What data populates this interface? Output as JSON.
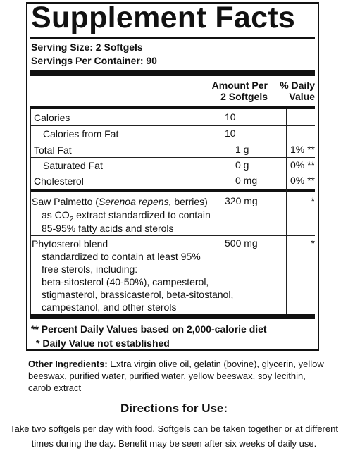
{
  "panel": {
    "title": "Supplement Facts",
    "serving_size": "Serving Size: 2 Softgels",
    "servings_per_container": "Servings Per Container: 90",
    "col_amount_l1": "Amount Per",
    "col_amount_l2": "2 Softgels",
    "col_dv_l1": "% Daily",
    "col_dv_l2": "Value",
    "rows": [
      {
        "name": "Calories",
        "amount": "10",
        "dv": ""
      },
      {
        "name": "Calories from Fat",
        "amount": "10",
        "dv": ""
      },
      {
        "name": "Total Fat",
        "amount": "1 g",
        "dv": "1% **"
      },
      {
        "name": "Saturated Fat",
        "amount": "0 g",
        "dv": "0% **"
      },
      {
        "name": "Cholesterol",
        "amount": "0 mg",
        "dv": "0% **"
      }
    ],
    "saw": {
      "name_start": "Saw Palmetto (",
      "name_italic": "Serenoa repens,",
      "name_end": " berries)",
      "line2_pre": "as CO",
      "line2_sub": "2",
      "line2_post": " extract standardized to contain",
      "line3": "85-95% fatty acids and sterols",
      "amount": "320 mg",
      "dv": "*"
    },
    "phyto": {
      "name": "Phytosterol blend",
      "lines": [
        "standardized to contain at least 95%",
        "free sterols, including:",
        "beta-sitosterol (40-50%), campesterol,",
        "stigmasterol, brassicasterol, beta-sitostanol,",
        "campestanol, and other sterols"
      ],
      "amount": "500 mg",
      "dv": "*"
    },
    "footnote1": "** Percent Daily Values based on 2,000-calorie diet",
    "footnote2": "* Daily Value not established"
  },
  "other_ingredients": {
    "label": "Other Ingredients:",
    "text": " Extra virgin olive oil, gelatin (bovine), glycerin, yellow beeswax, purified water, purified water, yellow beeswax, soy lecithin, carob extract"
  },
  "directions": {
    "title": "Directions for Use:",
    "line1": "Take two softgels per day with food. Softgels can be taken together or at different",
    "line2": "times during the day. Benefit may be seen after six weeks of daily use."
  }
}
